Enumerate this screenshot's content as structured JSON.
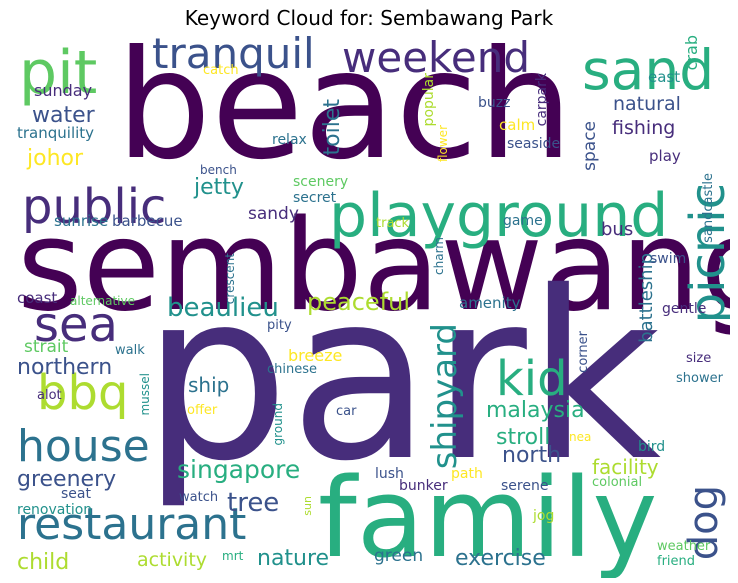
{
  "title": "Keyword Cloud for: Sembawang Park",
  "palette": {
    "deep_purple": "#440154",
    "indigo": "#472d7b",
    "slate_blue": "#3b528b",
    "steel_blue": "#2c728e",
    "teal": "#21918c",
    "sea_green": "#28ae80",
    "green": "#5ec962",
    "lime": "#addc30",
    "yellow": "#fde725"
  },
  "words": [
    {
      "text": "beach",
      "color": "deep_purple",
      "size": 0.98,
      "layout": "beach"
    },
    {
      "text": "sembawang",
      "color": "deep_purple",
      "size": 0.955,
      "layout": "sembawang"
    },
    {
      "text": "park",
      "color": "indigo",
      "size": 1.0,
      "layout": "park"
    },
    {
      "text": "family",
      "color": "sea_green",
      "size": 0.84,
      "layout": "family"
    },
    {
      "text": "playground",
      "color": "sea_green",
      "size": 0.5,
      "layout": "playground"
    },
    {
      "text": "pit",
      "color": "green",
      "size": 0.46,
      "layout": "pit"
    },
    {
      "text": "sand",
      "color": "sea_green",
      "size": 0.43,
      "layout": "sand"
    },
    {
      "text": "tranquil",
      "color": "slate_blue",
      "size": 0.36,
      "layout": "tranquil"
    },
    {
      "text": "weekend",
      "color": "indigo",
      "size": 0.38,
      "layout": "weekend"
    },
    {
      "text": "public",
      "color": "indigo",
      "size": 0.43,
      "layout": "public"
    },
    {
      "text": "picnic",
      "color": "teal",
      "size": 0.4,
      "layout": "picnic"
    },
    {
      "text": "sea",
      "color": "indigo",
      "size": 0.43,
      "layout": "sea"
    },
    {
      "text": "bbq",
      "color": "lime",
      "size": 0.43,
      "layout": "bbq"
    },
    {
      "text": "house",
      "color": "steel_blue",
      "size": 0.41,
      "layout": "house"
    },
    {
      "text": "kid",
      "color": "sea_green",
      "size": 0.43,
      "layout": "kid"
    },
    {
      "text": "restaurant",
      "color": "steel_blue",
      "size": 0.43,
      "layout": "restaurant"
    },
    {
      "text": "dog",
      "color": "slate_blue",
      "size": 0.33,
      "layout": "dog"
    },
    {
      "text": "shipyard",
      "color": "teal",
      "size": 0.3,
      "layout": "shipyard"
    },
    {
      "text": "water",
      "color": "slate_blue",
      "size": 0.2,
      "layout": "water"
    },
    {
      "text": "johor",
      "color": "yellow",
      "size": 0.2,
      "layout": "johor"
    },
    {
      "text": "jetty",
      "color": "teal",
      "size": 0.2,
      "layout": "jetty"
    },
    {
      "text": "toilet",
      "color": "steel_blue",
      "size": 0.2,
      "layout": "toilet"
    },
    {
      "text": "beaulieu",
      "color": "teal",
      "size": 0.23,
      "layout": "beaulieu"
    },
    {
      "text": "peaceful",
      "color": "lime",
      "size": 0.21,
      "layout": "peaceful"
    },
    {
      "text": "northern",
      "color": "slate_blue",
      "size": 0.2,
      "layout": "northern"
    },
    {
      "text": "greenery",
      "color": "slate_blue",
      "size": 0.2,
      "layout": "greenery"
    },
    {
      "text": "singapore",
      "color": "sea_green",
      "size": 0.22,
      "layout": "singapore"
    },
    {
      "text": "tree",
      "color": "slate_blue",
      "size": 0.23,
      "layout": "tree"
    },
    {
      "text": "north",
      "color": "slate_blue",
      "size": 0.2,
      "layout": "north"
    },
    {
      "text": "malaysia",
      "color": "sea_green",
      "size": 0.2,
      "layout": "malaysia"
    },
    {
      "text": "stroll",
      "color": "sea_green",
      "size": 0.2,
      "layout": "stroll"
    },
    {
      "text": "facility",
      "color": "lime",
      "size": 0.18,
      "layout": "facility"
    },
    {
      "text": "exercise",
      "color": "steel_blue",
      "size": 0.2,
      "layout": "exercise"
    },
    {
      "text": "nature",
      "color": "teal",
      "size": 0.2,
      "layout": "nature"
    },
    {
      "text": "child",
      "color": "lime",
      "size": 0.2,
      "layout": "child"
    },
    {
      "text": "activity",
      "color": "lime",
      "size": 0.17,
      "layout": "activity"
    },
    {
      "text": "green",
      "color": "steel_blue",
      "size": 0.16,
      "layout": "green"
    },
    {
      "text": "natural",
      "color": "slate_blue",
      "size": 0.17,
      "layout": "natural"
    },
    {
      "text": "fishing",
      "color": "indigo",
      "size": 0.17,
      "layout": "fishing"
    },
    {
      "text": "crab",
      "color": "sea_green",
      "size": 0.15,
      "layout": "crab"
    },
    {
      "text": "space",
      "color": "slate_blue",
      "size": 0.15,
      "layout": "space"
    },
    {
      "text": "bus",
      "color": "indigo",
      "size": 0.16,
      "layout": "bus"
    },
    {
      "text": "battleship",
      "color": "steel_blue",
      "size": 0.16,
      "layout": "battleship"
    },
    {
      "text": "sandy",
      "color": "indigo",
      "size": 0.15,
      "layout": "sandy"
    },
    {
      "text": "ship",
      "color": "steel_blue",
      "size": 0.18,
      "layout": "ship"
    },
    {
      "text": "strait",
      "color": "green",
      "size": 0.15,
      "layout": "strait"
    },
    {
      "text": "sunday",
      "color": "indigo",
      "size": 0.14,
      "layout": "sunday"
    },
    {
      "text": "tranquility",
      "color": "steel_blue",
      "size": 0.13,
      "layout": "tranquility"
    },
    {
      "text": "sunrise",
      "color": "steel_blue",
      "size": 0.13,
      "layout": "sunrise"
    },
    {
      "text": "barbecue",
      "color": "slate_blue",
      "size": 0.13,
      "layout": "barbecue"
    },
    {
      "text": "coast",
      "color": "indigo",
      "size": 0.13,
      "layout": "coast"
    },
    {
      "text": "alternative",
      "color": "green",
      "size": 0.11,
      "layout": "alternative"
    },
    {
      "text": "breeze",
      "color": "yellow",
      "size": 0.14,
      "layout": "breeze"
    },
    {
      "text": "catch",
      "color": "yellow",
      "size": 0.12,
      "layout": "catch"
    },
    {
      "text": "relax",
      "color": "steel_blue",
      "size": 0.12,
      "layout": "relax"
    },
    {
      "text": "bench",
      "color": "slate_blue",
      "size": 0.11,
      "layout": "bench"
    },
    {
      "text": "scenery",
      "color": "green",
      "size": 0.12,
      "layout": "scenery"
    },
    {
      "text": "secret",
      "color": "steel_blue",
      "size": 0.12,
      "layout": "secret"
    },
    {
      "text": "popular",
      "color": "lime",
      "size": 0.12,
      "layout": "popular"
    },
    {
      "text": "flower",
      "color": "yellow",
      "size": 0.11,
      "layout": "flower"
    },
    {
      "text": "carpark",
      "color": "indigo",
      "size": 0.12,
      "layout": "carpark"
    },
    {
      "text": "buzz",
      "color": "slate_blue",
      "size": 0.12,
      "layout": "buzz"
    },
    {
      "text": "calm",
      "color": "yellow",
      "size": 0.13,
      "layout": "calm"
    },
    {
      "text": "seaside",
      "color": "slate_blue",
      "size": 0.12,
      "layout": "seaside"
    },
    {
      "text": "east",
      "color": "teal",
      "size": 0.13,
      "layout": "east"
    },
    {
      "text": "play",
      "color": "indigo",
      "size": 0.13,
      "layout": "play"
    },
    {
      "text": "sandcastle",
      "color": "steel_blue",
      "size": 0.11,
      "layout": "sandcastle"
    },
    {
      "text": "track",
      "color": "lime",
      "size": 0.12,
      "layout": "track"
    },
    {
      "text": "game",
      "color": "steel_blue",
      "size": 0.12,
      "layout": "game"
    },
    {
      "text": "charm",
      "color": "steel_blue",
      "size": 0.11,
      "layout": "charm"
    },
    {
      "text": "crescent",
      "color": "steel_blue",
      "size": 0.11,
      "layout": "crescent"
    },
    {
      "text": "swim",
      "color": "slate_blue",
      "size": 0.12,
      "layout": "swim"
    },
    {
      "text": "amenity",
      "color": "steel_blue",
      "size": 0.13,
      "layout": "amenity"
    },
    {
      "text": "gentle",
      "color": "indigo",
      "size": 0.12,
      "layout": "gentle"
    },
    {
      "text": "pity",
      "color": "slate_blue",
      "size": 0.12,
      "layout": "pity"
    },
    {
      "text": "walk",
      "color": "steel_blue",
      "size": 0.12,
      "layout": "walk"
    },
    {
      "text": "corner",
      "color": "slate_blue",
      "size": 0.12,
      "layout": "corner"
    },
    {
      "text": "size",
      "color": "indigo",
      "size": 0.12,
      "layout": "size"
    },
    {
      "text": "shower",
      "color": "steel_blue",
      "size": 0.12,
      "layout": "shower"
    },
    {
      "text": "chinese",
      "color": "steel_blue",
      "size": 0.12,
      "layout": "chinese"
    },
    {
      "text": "offer",
      "color": "yellow",
      "size": 0.12,
      "layout": "offer"
    },
    {
      "text": "mussel",
      "color": "teal",
      "size": 0.11,
      "layout": "mussel"
    },
    {
      "text": "alot",
      "color": "indigo",
      "size": 0.12,
      "layout": "alot"
    },
    {
      "text": "car",
      "color": "slate_blue",
      "size": 0.12,
      "layout": "car"
    },
    {
      "text": "ground",
      "color": "teal",
      "size": 0.11,
      "layout": "ground"
    },
    {
      "text": "nea",
      "color": "yellow",
      "size": 0.11,
      "layout": "nea"
    },
    {
      "text": "bird",
      "color": "teal",
      "size": 0.12,
      "layout": "bird"
    },
    {
      "text": "seat",
      "color": "slate_blue",
      "size": 0.12,
      "layout": "seat"
    },
    {
      "text": "renovation",
      "color": "teal",
      "size": 0.12,
      "layout": "renovation"
    },
    {
      "text": "watch",
      "color": "slate_blue",
      "size": 0.12,
      "layout": "watch"
    },
    {
      "text": "sun",
      "color": "lime",
      "size": 0.11,
      "layout": "sun"
    },
    {
      "text": "lush",
      "color": "slate_blue",
      "size": 0.13,
      "layout": "lush"
    },
    {
      "text": "bunker",
      "color": "indigo",
      "size": 0.12,
      "layout": "bunker"
    },
    {
      "text": "path",
      "color": "yellow",
      "size": 0.12,
      "layout": "path"
    },
    {
      "text": "serene",
      "color": "slate_blue",
      "size": 0.13,
      "layout": "serene"
    },
    {
      "text": "colonial",
      "color": "green",
      "size": 0.12,
      "layout": "colonial"
    },
    {
      "text": "jog",
      "color": "lime",
      "size": 0.12,
      "layout": "jog"
    },
    {
      "text": "mrt",
      "color": "sea_green",
      "size": 0.11,
      "layout": "mrt"
    },
    {
      "text": "weather",
      "color": "green",
      "size": 0.12,
      "layout": "weather"
    },
    {
      "text": "friend",
      "color": "sea_green",
      "size": 0.12,
      "layout": "friend"
    }
  ]
}
